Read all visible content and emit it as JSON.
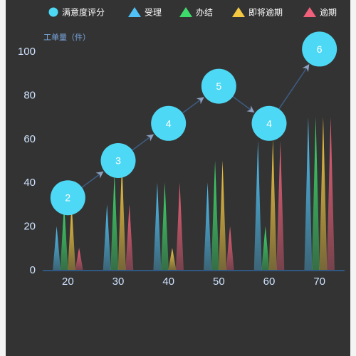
{
  "chart_data": {
    "type": "bar",
    "ylabel": "工单量（件）",
    "ylim": [
      0,
      100
    ],
    "yticks": [
      0,
      20,
      40,
      60,
      80,
      100
    ],
    "categories": [
      "20",
      "30",
      "40",
      "50",
      "60",
      "70"
    ],
    "series": [
      {
        "name": "受理",
        "color": "#4fc3f7",
        "values": [
          20,
          30,
          40,
          40,
          59,
          70
        ]
      },
      {
        "name": "办结",
        "color": "#3ddc6a",
        "values": [
          30,
          44,
          40,
          50,
          20,
          70
        ]
      },
      {
        "name": "即将逾期",
        "color": "#f5c842",
        "values": [
          30,
          49,
          10,
          50,
          60,
          70
        ]
      },
      {
        "name": "逾期",
        "color": "#f0607a",
        "values": [
          10,
          30,
          40,
          20,
          59,
          70
        ]
      }
    ],
    "line_series": {
      "name": "满意度评分",
      "color": "#4dd9f5",
      "y": [
        33,
        50,
        67,
        84,
        67,
        101
      ],
      "labels": [
        "2",
        "3",
        "4",
        "5",
        "4",
        "6"
      ]
    },
    "legend_position": "top-right",
    "grid": false
  }
}
